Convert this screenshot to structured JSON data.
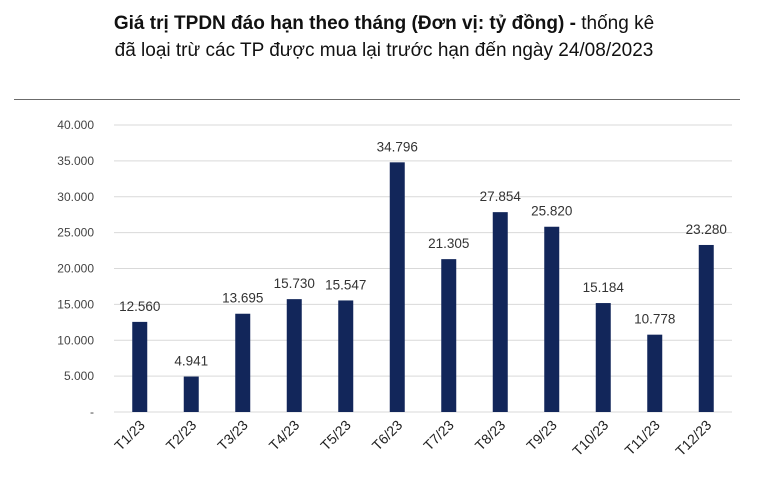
{
  "header": {
    "title_bold": "Giá trị TPDN đáo hạn theo tháng (Đơn vị: tỷ đồng) -",
    "title_rest": " thống kê",
    "title_line2": "đã loại trừ các TP được mua lại trước hạn đến ngày 24/08/2023"
  },
  "chart_data": {
    "type": "bar",
    "categories": [
      "T1/23",
      "T2/23",
      "T3/23",
      "T4/23",
      "T5/23",
      "T6/23",
      "T7/23",
      "T8/23",
      "T9/23",
      "T10/23",
      "T11/23",
      "T12/23"
    ],
    "values": [
      12560,
      4941,
      13695,
      15730,
      15547,
      34796,
      21305,
      27854,
      25820,
      15184,
      10778,
      23280
    ],
    "data_labels": [
      "12.560",
      "4.941",
      "13.695",
      "15.730",
      "15.547",
      "34.796",
      "21.305",
      "27.854",
      "25.820",
      "15.184",
      "10.778",
      "23.280"
    ],
    "ylim": [
      0,
      40000
    ],
    "yticks": [
      0,
      5000,
      10000,
      15000,
      20000,
      25000,
      30000,
      35000,
      40000
    ],
    "ytick_labels": [
      "-",
      "5.000",
      "10.000",
      "15.000",
      "20.000",
      "25.000",
      "30.000",
      "35.000",
      "40.000"
    ],
    "grid": true,
    "bar_color": "#12265a",
    "grid_color": "#d9d9d9"
  }
}
